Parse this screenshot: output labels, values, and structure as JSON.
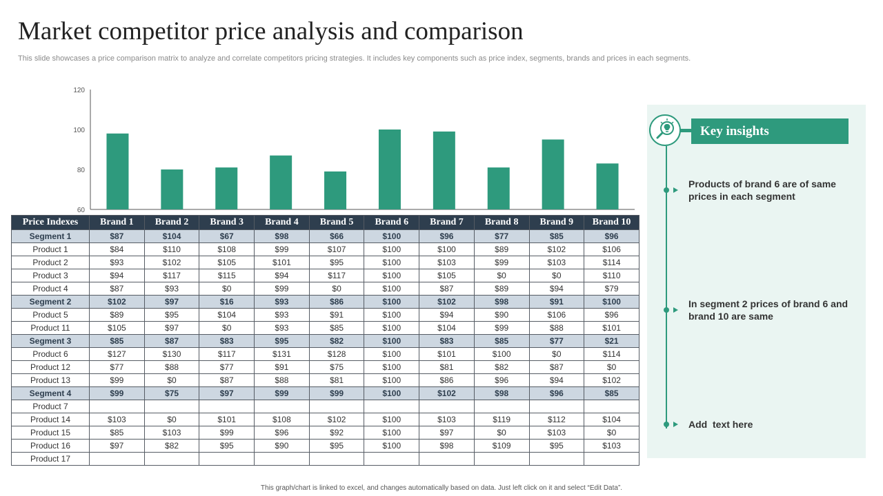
{
  "page": {
    "title": "Market competitor price analysis and comparison",
    "subtitle": "This slide showcases a price comparison matrix to analyze and correlate competitors pricing strategies. It includes key components such as price index, segments, brands and prices in each segments.",
    "footnote": "This graph/chart is linked to excel, and changes automatically based on data. Just left click on it and select “Edit Data”."
  },
  "chart_data": {
    "type": "bar",
    "title": "",
    "xlabel": "",
    "ylabel": "",
    "categories": [
      "Brand 1",
      "Brand 2",
      "Brand 3",
      "Brand 4",
      "Brand 5",
      "Brand 6",
      "Brand 7",
      "Brand 8",
      "Brand 9",
      "Brand 10"
    ],
    "values": [
      98,
      80,
      81,
      87,
      79,
      100,
      99,
      81,
      95,
      83
    ],
    "ylim": [
      60,
      120
    ],
    "yticks": [
      60,
      80,
      100,
      120
    ],
    "color": "#2e9a7d",
    "grid": false,
    "legend": "none"
  },
  "table": {
    "headers": [
      "Price Indexes",
      "Brand 1",
      "Brand 2",
      "Brand 3",
      "Brand 4",
      "Brand 5",
      "Brand 6",
      "Brand 7",
      "Brand 8",
      "Brand 9",
      "Brand 10"
    ],
    "rows": [
      {
        "segment": true,
        "cells": [
          "Segment 1",
          "$87",
          "$104",
          "$67",
          "$98",
          "$66",
          "$100",
          "$96",
          "$77",
          "$85",
          "$96"
        ]
      },
      {
        "segment": false,
        "cells": [
          "Product 1",
          "$84",
          "$110",
          "$108",
          "$99",
          "$107",
          "$100",
          "$100",
          "$89",
          "$102",
          "$106"
        ]
      },
      {
        "segment": false,
        "cells": [
          "Product 2",
          "$93",
          "$102",
          "$105",
          "$101",
          "$95",
          "$100",
          "$103",
          "$99",
          "$103",
          "$114"
        ]
      },
      {
        "segment": false,
        "cells": [
          "Product 3",
          "$94",
          "$117",
          "$115",
          "$94",
          "$117",
          "$100",
          "$105",
          "$0",
          "$0",
          "$110"
        ]
      },
      {
        "segment": false,
        "cells": [
          "Product 4",
          "$87",
          "$93",
          "$0",
          "$99",
          "$0",
          "$100",
          "$87",
          "$89",
          "$94",
          "$79"
        ]
      },
      {
        "segment": true,
        "cells": [
          "Segment 2",
          "$102",
          "$97",
          "$16",
          "$93",
          "$86",
          "$100",
          "$102",
          "$98",
          "$91",
          "$100"
        ]
      },
      {
        "segment": false,
        "cells": [
          "Product 5",
          "$89",
          "$95",
          "$104",
          "$93",
          "$91",
          "$100",
          "$94",
          "$90",
          "$106",
          "$96"
        ]
      },
      {
        "segment": false,
        "cells": [
          "Product 11",
          "$105",
          "$97",
          "$0",
          "$93",
          "$85",
          "$100",
          "$104",
          "$99",
          "$88",
          "$101"
        ]
      },
      {
        "segment": true,
        "cells": [
          "Segment 3",
          "$85",
          "$87",
          "$83",
          "$95",
          "$82",
          "$100",
          "$83",
          "$85",
          "$77",
          "$21"
        ]
      },
      {
        "segment": false,
        "cells": [
          "Product 6",
          "$127",
          "$130",
          "$117",
          "$131",
          "$128",
          "$100",
          "$101",
          "$100",
          "$0",
          "$114"
        ]
      },
      {
        "segment": false,
        "cells": [
          "Product 12",
          "$77",
          "$88",
          "$77",
          "$91",
          "$75",
          "$100",
          "$81",
          "$82",
          "$87",
          "$0"
        ]
      },
      {
        "segment": false,
        "cells": [
          "Product 13",
          "$99",
          "$0",
          "$87",
          "$88",
          "$81",
          "$100",
          "$86",
          "$96",
          "$94",
          "$102"
        ]
      },
      {
        "segment": true,
        "cells": [
          "Segment 4",
          "$99",
          "$75",
          "$97",
          "$99",
          "$99",
          "$100",
          "$102",
          "$98",
          "$96",
          "$85"
        ]
      },
      {
        "segment": false,
        "cells": [
          "Product 7",
          "",
          "",
          "",
          "",
          "",
          "",
          "",
          "",
          "",
          ""
        ]
      },
      {
        "segment": false,
        "cells": [
          "Product 14",
          "$103",
          "$0",
          "$101",
          "$108",
          "$102",
          "$100",
          "$103",
          "$119",
          "$112",
          "$104"
        ]
      },
      {
        "segment": false,
        "cells": [
          "Product 15",
          "$85",
          "$103",
          "$99",
          "$96",
          "$92",
          "$100",
          "$97",
          "$0",
          "$103",
          "$0"
        ]
      },
      {
        "segment": false,
        "cells": [
          "Product 16",
          "$97",
          "$82",
          "$95",
          "$90",
          "$95",
          "$100",
          "$98",
          "$109",
          "$95",
          "$103"
        ]
      },
      {
        "segment": false,
        "cells": [
          "Product 17",
          "",
          "",
          "",
          "",
          "",
          "",
          "",
          "",
          "",
          ""
        ]
      }
    ]
  },
  "insights": {
    "header": "Key insights",
    "icon": "bulb-magnifier-icon",
    "items": [
      "Products of brand 6 are of same prices in each segment",
      "In segment 2 prices of brand 6 and brand 10 are same",
      "Add  text here"
    ]
  },
  "colors": {
    "accent": "#2e9a7d",
    "table_header": "#2e3e4e",
    "segment_row": "#cdd7e1",
    "insight_bg": "#eaf5f2"
  }
}
